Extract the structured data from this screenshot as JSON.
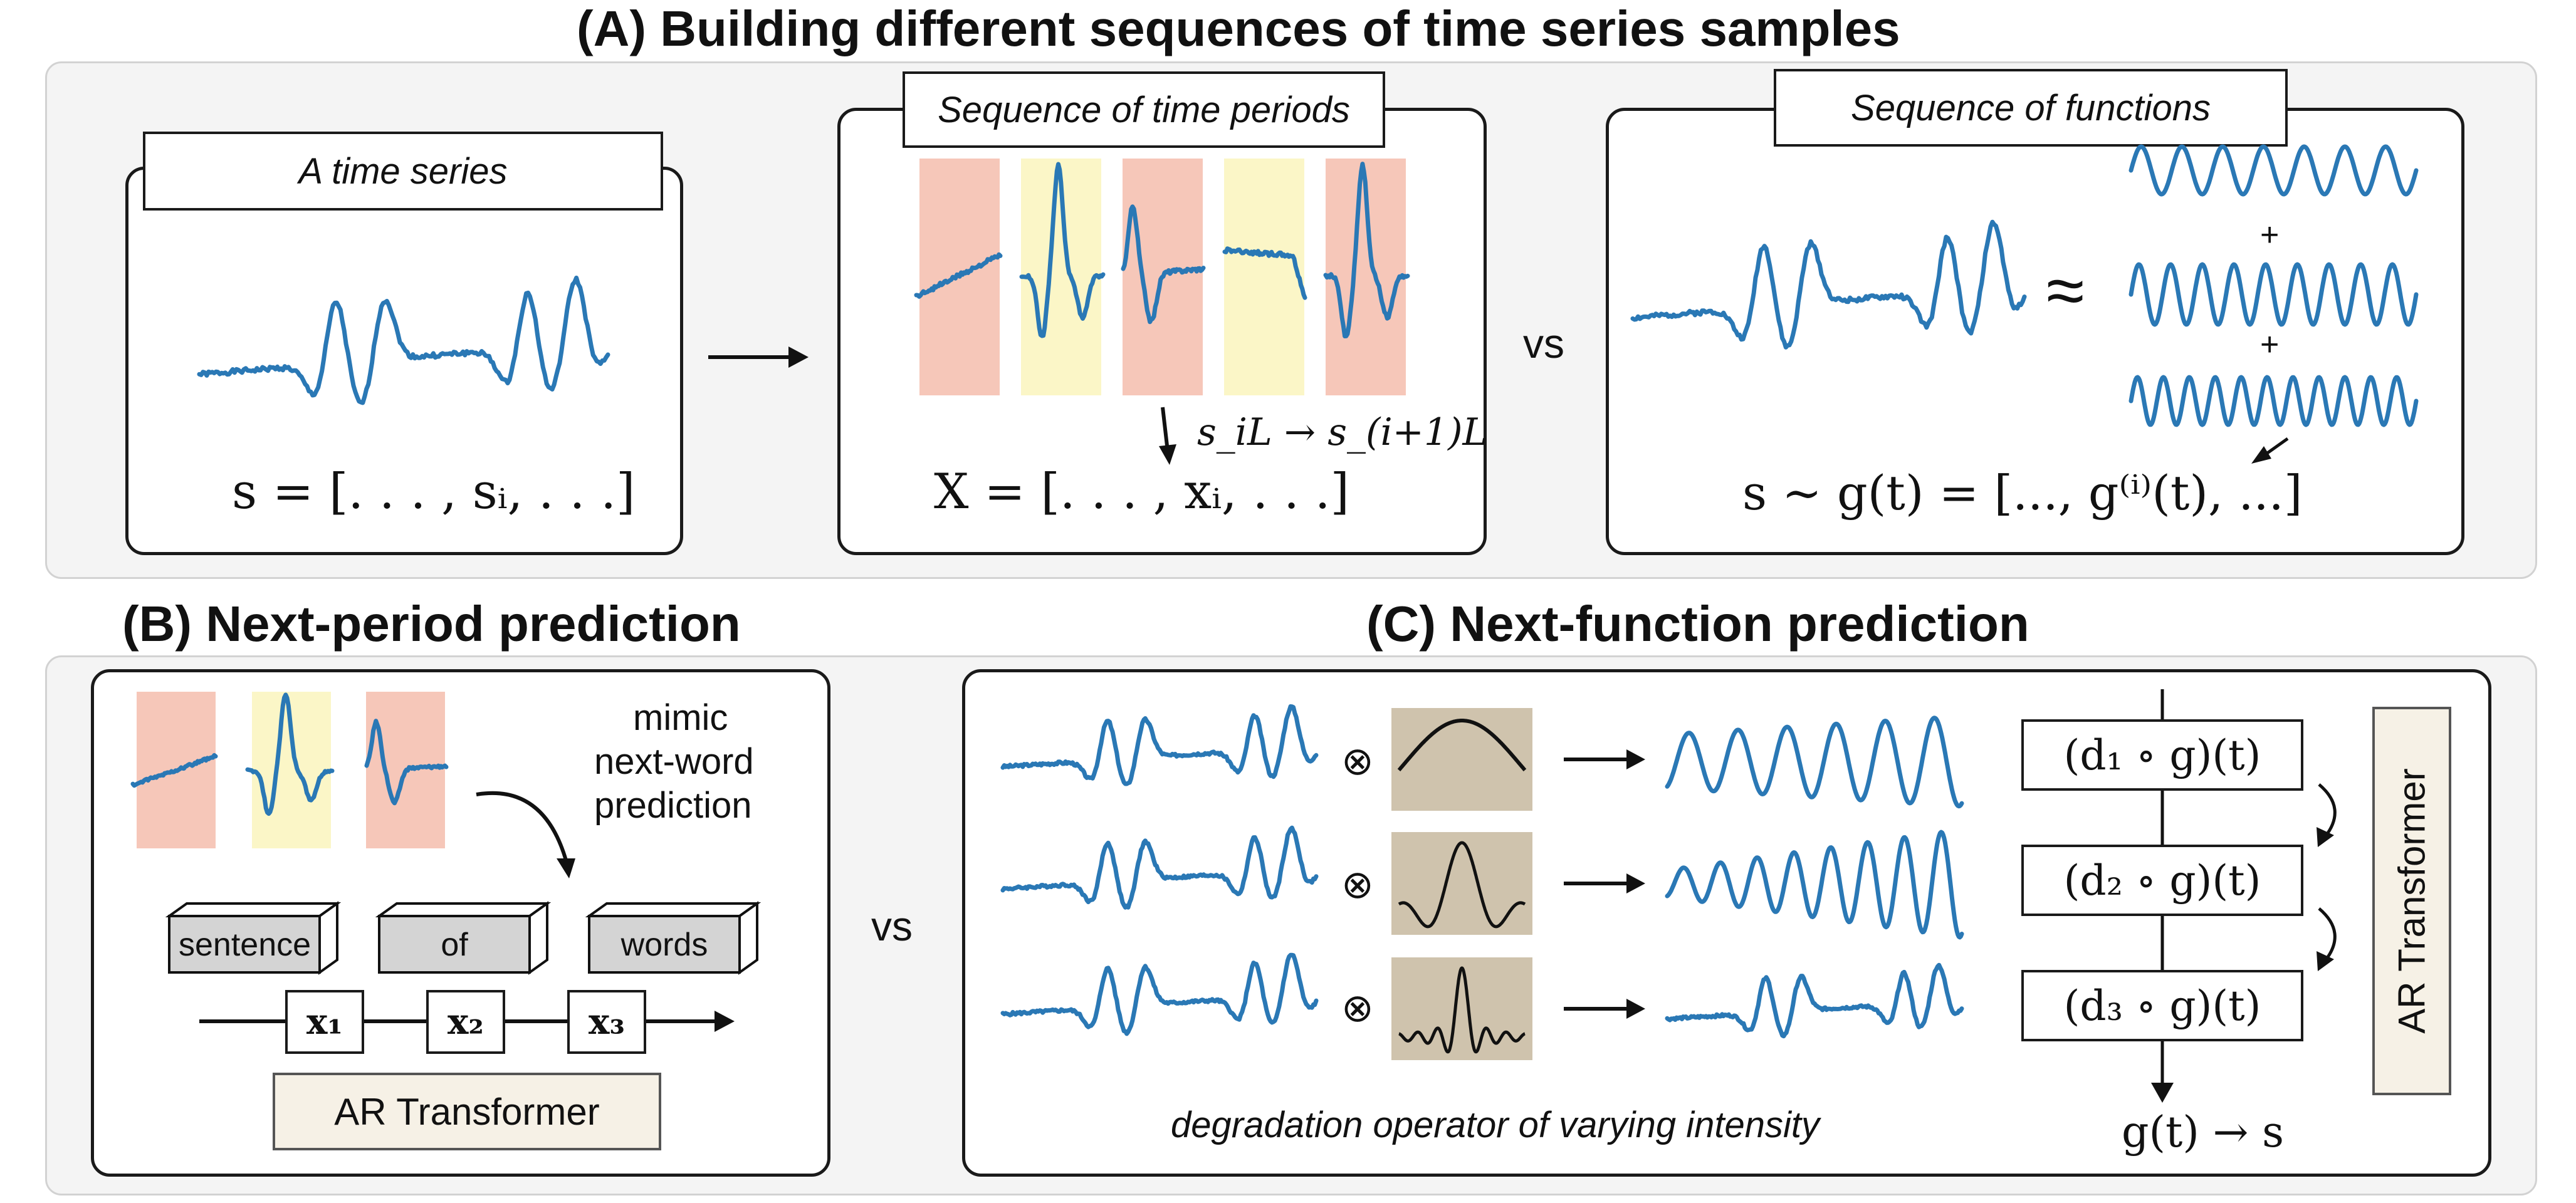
{
  "titles": {
    "a": "(A) Building different sequences of time series samples",
    "b": "(B) Next-period prediction",
    "c": "(C) Next-function prediction"
  },
  "panel_a": {
    "ts_label": "A time series",
    "ts_formula": "s = [. . . , sᵢ, . . .]",
    "periods_label": "Sequence of time periods",
    "periods_transition": "s_iL → s_(i+1)L",
    "periods_formula": "X = [. . . , xᵢ, . . .]",
    "vs": "vs",
    "functions_label": "Sequence of functions",
    "approx": "≈",
    "plus": "+",
    "functions_formula": "s ∼ g(t) = [..., g⁽ⁱ⁾(t), ...]"
  },
  "panel_b": {
    "mimic": [
      "mimic",
      "next-word",
      "prediction"
    ],
    "words": [
      "sentence",
      "of",
      "words"
    ],
    "tokens": [
      "x₁",
      "x₂",
      "x₃"
    ],
    "ar": "AR Transformer"
  },
  "vs_middle": "vs",
  "panel_c": {
    "otimes": "⊗",
    "degradation": "degradation operator of varying intensity",
    "steps": [
      "(d₁ ∘ g)(t)",
      "(d₂ ∘ g)(t)",
      "(d₃ ∘ g)(t)"
    ],
    "output": "g(t) → s",
    "ar": "AR Transformer"
  },
  "colors": {
    "wave": "#2a78b5",
    "pink": "#f6c7b9",
    "yellow": "#fbf6c7",
    "kernel_bg": "#cfc3ad",
    "ar_bg": "#f6f1e6"
  }
}
